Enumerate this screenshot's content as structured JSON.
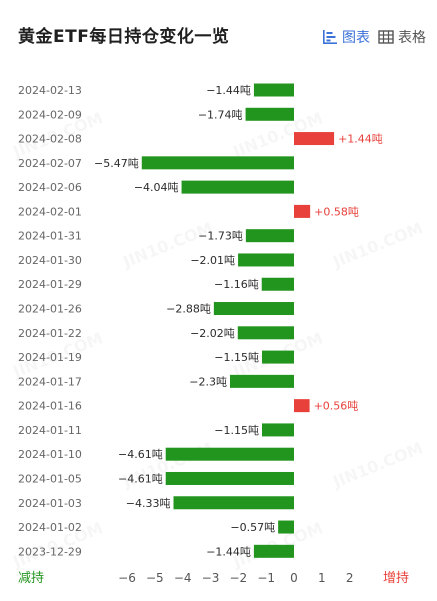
{
  "header": {
    "title": "黄金ETF每日持仓变化一览",
    "tab_chart": "图表",
    "tab_table": "表格",
    "active_color": "#3a72d8"
  },
  "watermark_text": "JIN10.COM",
  "colors": {
    "decrease": "#22951e",
    "increase": "#e8403b"
  },
  "chart_data": {
    "type": "bar",
    "orientation": "horizontal",
    "unit": "吨",
    "categories": [
      "2024-02-13",
      "2024-02-09",
      "2024-02-08",
      "2024-02-07",
      "2024-02-06",
      "2024-02-01",
      "2024-01-31",
      "2024-01-30",
      "2024-01-29",
      "2024-01-26",
      "2024-01-22",
      "2024-01-19",
      "2024-01-17",
      "2024-01-16",
      "2024-01-11",
      "2024-01-10",
      "2024-01-05",
      "2024-01-03",
      "2024-01-02",
      "2023-12-29"
    ],
    "values": [
      -1.44,
      -1.74,
      1.44,
      -5.47,
      -4.04,
      0.58,
      -1.73,
      -2.01,
      -1.16,
      -2.88,
      -2.02,
      -1.15,
      -2.3,
      0.56,
      -1.15,
      -4.61,
      -4.61,
      -4.33,
      -0.57,
      -1.44
    ],
    "labels": [
      "−1.44吨",
      "−1.74吨",
      "+1.44吨",
      "−5.47吨",
      "−4.04吨",
      "+0.58吨",
      "−1.73吨",
      "−2.01吨",
      "−1.16吨",
      "−2.88吨",
      "−2.02吨",
      "−1.15吨",
      "−2.3吨",
      "+0.56吨",
      "−1.15吨",
      "−4.61吨",
      "−4.61吨",
      "−4.33吨",
      "−0.57吨",
      "−1.44吨"
    ],
    "xlim": [
      -6,
      2
    ],
    "xticks": [
      -6,
      -5,
      -4,
      -3,
      -2,
      -1,
      0,
      1,
      2
    ],
    "xtick_labels": [
      "−6",
      "−5",
      "−4",
      "−3",
      "−2",
      "−1",
      "0",
      "1",
      "2"
    ],
    "left_axis_label": "减持",
    "right_axis_label": "增持",
    "grid": false
  }
}
